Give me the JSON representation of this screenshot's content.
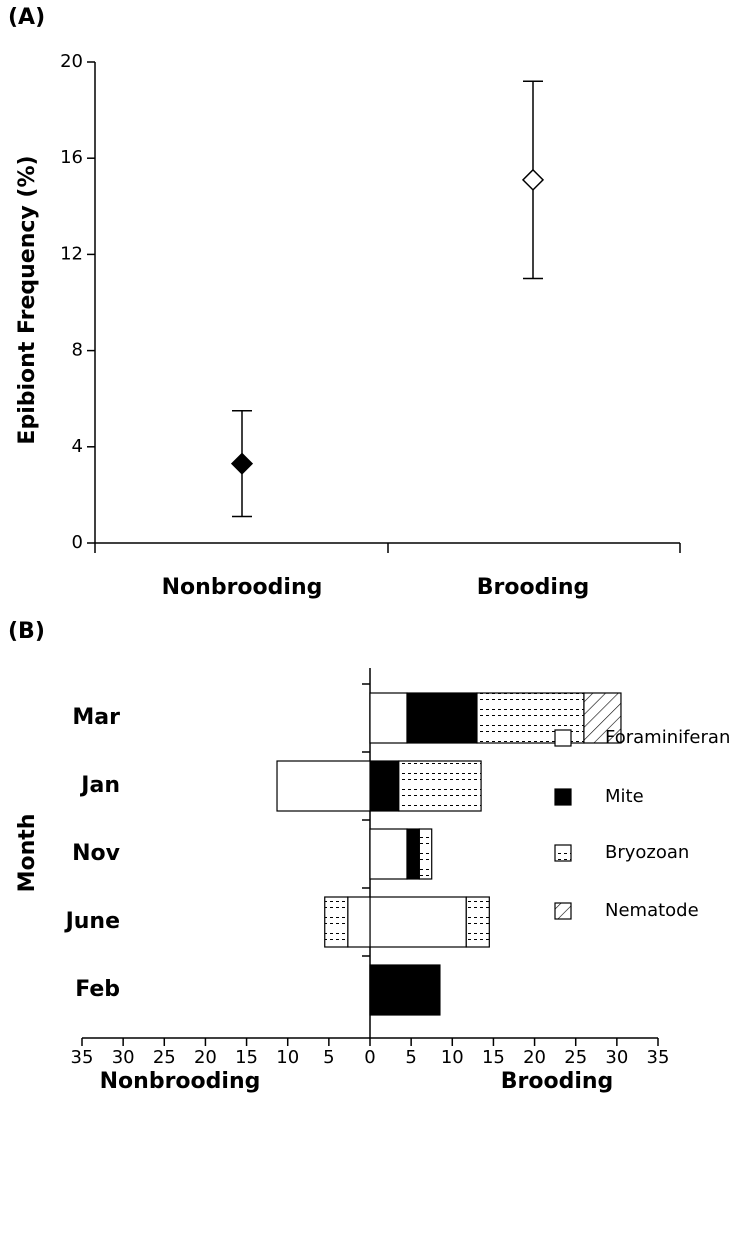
{
  "chart_data": [
    {
      "type": "errorpoint",
      "title": "(A)",
      "y_label": "Epibiont Frequency (%)",
      "categories": [
        "Nonbrooding",
        "Brooding"
      ],
      "values": [
        3.3,
        15.1
      ],
      "errors": [
        2.2,
        4.1
      ],
      "marker_fills": [
        "#000000",
        "#ffffff"
      ],
      "color": "#000000",
      "ylim": [
        0,
        20
      ],
      "yticks": [
        0,
        4,
        8,
        12,
        16,
        20
      ]
    },
    {
      "type": "diverging_stacked_barh",
      "title": "(B)",
      "y_label": "Month",
      "x_labels": [
        "Nonbrooding",
        "Brooding"
      ],
      "categories": [
        "Mar",
        "Jan",
        "Nov",
        "June",
        "Feb"
      ],
      "series": [
        {
          "name": "Foraminiferan",
          "color": "#ffffff",
          "pattern": "solid",
          "brooding": [
            4.5,
            null,
            4.5,
            11.7,
            null
          ],
          "nonbrooding": [
            null,
            -11.3,
            null,
            -2.7,
            null
          ]
        },
        {
          "name": "Mite",
          "color": "#000000",
          "pattern": "solid",
          "brooding": [
            8.5,
            3.5,
            1.5,
            null,
            8.5
          ]
        },
        {
          "name": "Bryozoan",
          "color": "#ffffff",
          "pattern": "dotted",
          "brooding": [
            13,
            10,
            1.5,
            2.8,
            null
          ],
          "nonbrooding": [
            null,
            null,
            null,
            -2.8,
            null
          ]
        },
        {
          "name": "Nematode",
          "color": "#ffffff",
          "pattern": "hatch",
          "brooding": [
            4.5,
            null,
            null,
            null,
            null
          ]
        }
      ],
      "xlim": [
        -35,
        35
      ],
      "xticks": [
        {
          "value": -35,
          "label": "35"
        },
        {
          "value": -30,
          "label": "30"
        },
        {
          "value": -25,
          "label": "25"
        },
        {
          "value": -20,
          "label": "20"
        },
        {
          "value": -15,
          "label": "15"
        },
        {
          "value": -10,
          "label": "10"
        },
        {
          "value": -5,
          "label": "5"
        },
        0,
        5,
        10,
        15,
        20,
        25,
        30,
        35
      ]
    }
  ]
}
